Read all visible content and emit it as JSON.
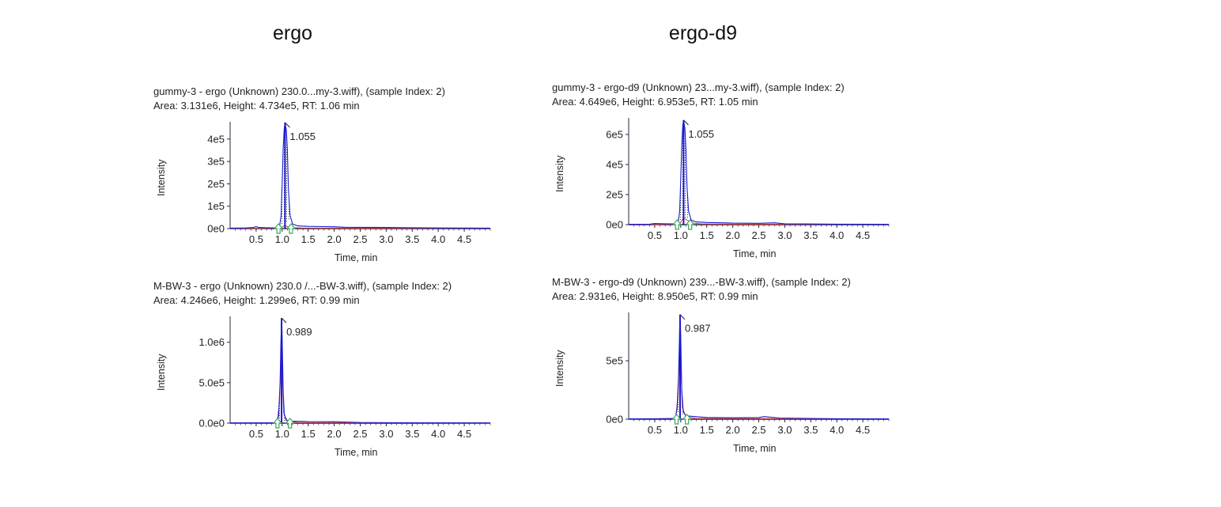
{
  "titles": {
    "left": "ergo",
    "right": "ergo-d9"
  },
  "chart_data": [
    {
      "type": "line",
      "id": "ergo-gummy",
      "header": "gummy-3 - ergo (Unknown) 230.0...my-3.wiff), (sample Index: 2)",
      "stats": "Area: 3.131e6, Height: 4.734e5, RT: 1.06 min",
      "xlabel": "Time, min",
      "ylabel": "Intensity",
      "x_ticks": [
        "0.5",
        "1.0",
        "1.5",
        "2.0",
        "2.5",
        "3.0",
        "3.5",
        "4.0",
        "4.5"
      ],
      "y_ticks": [
        "0e0",
        "1e5",
        "2e5",
        "3e5",
        "4e5"
      ],
      "y_tick_values": [
        0,
        100000,
        200000,
        300000,
        400000
      ],
      "xlim": [
        0.0,
        5.0
      ],
      "ylim": [
        0,
        470000
      ],
      "peak_rt": 1.055,
      "peak_label": "1.055",
      "peak_height": 473400,
      "integration_start": 0.93,
      "integration_end": 1.17,
      "series": [
        {
          "x": [
            0.0,
            0.3,
            0.45,
            0.5,
            0.55,
            0.7,
            0.9,
            0.95,
            0.98,
            1.0,
            1.02,
            1.04,
            1.055,
            1.08,
            1.1,
            1.12,
            1.15,
            1.2,
            1.3,
            1.5,
            1.8,
            2.0,
            2.2,
            3.0,
            4.0,
            5.0
          ],
          "y": [
            2000,
            3000,
            5000,
            9000,
            5000,
            4000,
            3000,
            8000,
            60000,
            200000,
            360000,
            445000,
            473400,
            440000,
            350000,
            180000,
            60000,
            20000,
            12000,
            10000,
            9000,
            8000,
            6000,
            5000,
            3000,
            2000
          ]
        }
      ],
      "secondary_series": [
        {
          "x": [
            0.0,
            0.9,
            1.0,
            1.05,
            1.1,
            1.2,
            1.4,
            2.0,
            5.0
          ],
          "y": [
            1000,
            1500,
            6000,
            14000,
            9000,
            4000,
            2500,
            2000,
            1500
          ]
        }
      ],
      "colors": {
        "primary": "#1a1ad0",
        "secondary": "#d84040",
        "axis": "#2a2a40",
        "marker": "#3aa85a"
      }
    },
    {
      "type": "line",
      "id": "ergo-d9-gummy",
      "header": "gummy-3 - ergo-d9 (Unknown) 23...my-3.wiff), (sample Index: 2)",
      "stats": "Area: 4.649e6, Height: 6.953e5, RT: 1.05 min",
      "xlabel": "Time, min",
      "ylabel": "Intensity",
      "x_ticks": [
        "0.5",
        "1.0",
        "1.5",
        "2.0",
        "2.5",
        "3.0",
        "3.5",
        "4.0",
        "4.5"
      ],
      "y_ticks": [
        "0e0",
        "2e5",
        "4e5",
        "6e5"
      ],
      "y_tick_values": [
        0,
        200000,
        400000,
        600000
      ],
      "xlim": [
        0.0,
        5.0
      ],
      "ylim": [
        0,
        700000
      ],
      "peak_rt": 1.055,
      "peak_label": "1.055",
      "peak_height": 695300,
      "integration_start": 0.93,
      "integration_end": 1.18,
      "series": [
        {
          "x": [
            0.0,
            0.4,
            0.5,
            0.7,
            0.9,
            0.95,
            0.98,
            1.0,
            1.02,
            1.04,
            1.055,
            1.08,
            1.1,
            1.12,
            1.15,
            1.2,
            1.3,
            1.5,
            1.8,
            2.0,
            2.5,
            2.8,
            3.0,
            4.0,
            5.0
          ],
          "y": [
            2000,
            3000,
            8000,
            6000,
            5000,
            12000,
            90000,
            300000,
            520000,
            660000,
            695300,
            640000,
            500000,
            260000,
            90000,
            30000,
            18000,
            14000,
            12000,
            10000,
            9000,
            12000,
            6000,
            3000,
            2000
          ]
        }
      ],
      "secondary_series": [
        {
          "x": [
            0.0,
            0.9,
            1.0,
            1.05,
            1.1,
            1.2,
            1.4,
            2.0,
            5.0
          ],
          "y": [
            1000,
            2000,
            15000,
            45000,
            35000,
            12000,
            5000,
            3000,
            2000
          ]
        }
      ],
      "colors": {
        "primary": "#1a1ad0",
        "secondary": "#d84040",
        "axis": "#2a2a40",
        "marker": "#3aa85a"
      }
    },
    {
      "type": "line",
      "id": "ergo-mbw",
      "header": "M-BW-3 - ergo (Unknown) 230.0 /...-BW-3.wiff), (sample Index: 2)",
      "stats": "Area: 4.246e6, Height: 1.299e6, RT: 0.99 min",
      "xlabel": "Time, min",
      "ylabel": "Intensity",
      "x_ticks": [
        "0.5",
        "1.0",
        "1.5",
        "2.0",
        "2.5",
        "3.0",
        "3.5",
        "4.0",
        "4.5"
      ],
      "y_ticks": [
        "0.0e0",
        "5.0e5",
        "1.0e6"
      ],
      "y_tick_values": [
        0,
        500000,
        1000000
      ],
      "xlim": [
        0.0,
        5.0
      ],
      "ylim": [
        0,
        1300000
      ],
      "peak_rt": 0.989,
      "peak_label": "0.989",
      "peak_height": 1299000,
      "integration_start": 0.91,
      "integration_end": 1.15,
      "series": [
        {
          "x": [
            0.0,
            0.5,
            0.85,
            0.9,
            0.93,
            0.96,
            0.975,
            0.989,
            1.0,
            1.02,
            1.04,
            1.07,
            1.1,
            1.2,
            1.5,
            2.0,
            2.2,
            2.5,
            3.0,
            4.0,
            5.0
          ],
          "y": [
            3000,
            5000,
            6000,
            10000,
            80000,
            500000,
            1000000,
            1299000,
            1050000,
            400000,
            120000,
            40000,
            30000,
            25000,
            20000,
            18000,
            15000,
            8000,
            6000,
            4000,
            3000
          ]
        }
      ],
      "secondary_series": [
        {
          "x": [
            0.0,
            0.9,
            0.95,
            0.97,
            0.985,
            1.0,
            1.03,
            1.1,
            1.3,
            5.0
          ],
          "y": [
            2000,
            5000,
            250000,
            700000,
            940000,
            700000,
            120000,
            25000,
            8000,
            3000
          ]
        }
      ],
      "colors": {
        "primary": "#1a1ad0",
        "secondary": "#d84040",
        "axis": "#2a2a40",
        "marker": "#3aa85a"
      }
    },
    {
      "type": "line",
      "id": "ergo-d9-mbw",
      "header": "M-BW-3 - ergo-d9 (Unknown) 239...-BW-3.wiff), (sample Index: 2)",
      "stats": "Area: 2.931e6, Height: 8.950e5, RT: 0.99 min",
      "xlabel": "Time, min",
      "ylabel": "Intensity",
      "x_ticks": [
        "0.5",
        "1.0",
        "1.5",
        "2.0",
        "2.5",
        "3.0",
        "3.5",
        "4.0",
        "4.5"
      ],
      "y_ticks": [
        "0e0",
        "5e5"
      ],
      "y_tick_values": [
        0,
        500000
      ],
      "xlim": [
        0.0,
        5.0
      ],
      "ylim": [
        0,
        900000
      ],
      "peak_rt": 0.987,
      "peak_label": "0.987",
      "peak_height": 895000,
      "integration_start": 0.92,
      "integration_end": 1.12,
      "series": [
        {
          "x": [
            0.0,
            0.5,
            0.85,
            0.9,
            0.93,
            0.96,
            0.975,
            0.987,
            1.0,
            1.02,
            1.05,
            1.1,
            1.2,
            1.5,
            2.0,
            2.5,
            2.6,
            2.7,
            2.9,
            3.5,
            4.0,
            5.0
          ],
          "y": [
            3000,
            4000,
            6000,
            12000,
            90000,
            400000,
            700000,
            895000,
            720000,
            250000,
            60000,
            30000,
            25000,
            15000,
            12000,
            14000,
            22000,
            18000,
            10000,
            6000,
            4000,
            3000
          ]
        }
      ],
      "secondary_series": [
        {
          "x": [
            0.0,
            0.9,
            0.95,
            0.97,
            0.985,
            1.0,
            1.03,
            1.1,
            1.3,
            5.0
          ],
          "y": [
            2000,
            5000,
            200000,
            550000,
            730000,
            520000,
            100000,
            20000,
            6000,
            3000
          ]
        }
      ],
      "colors": {
        "primary": "#1a1ad0",
        "secondary": "#d84040",
        "axis": "#2a2a40",
        "marker": "#3aa85a"
      }
    }
  ]
}
